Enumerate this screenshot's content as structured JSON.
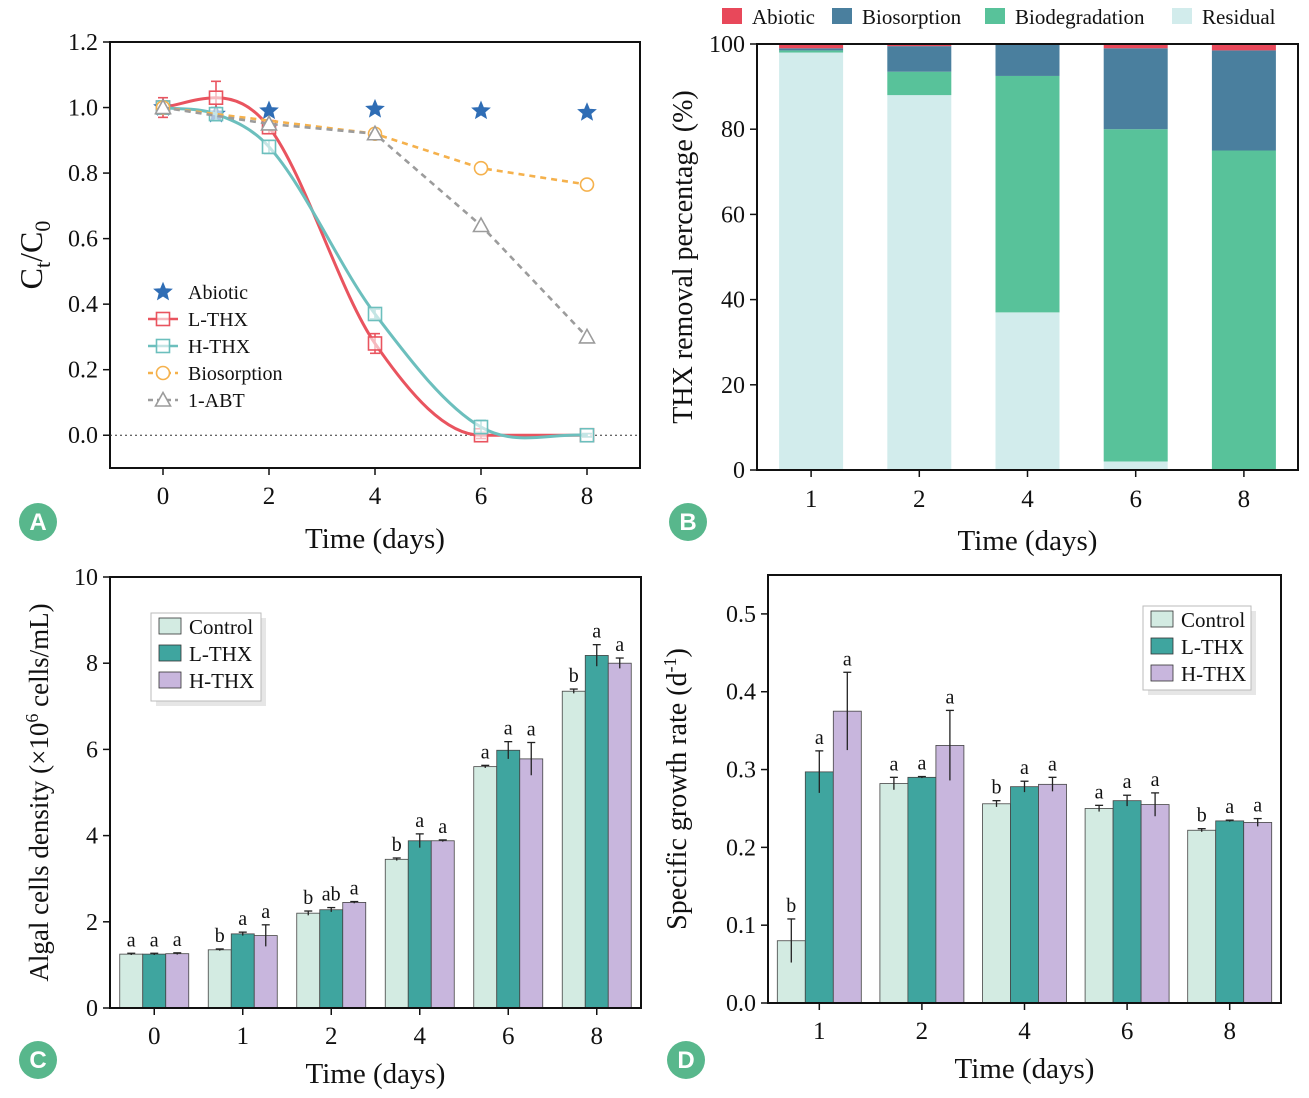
{
  "colors": {
    "abiotic": "#e8485a",
    "biosorption": "#4a7f9e",
    "biodegradation": "#58c29a",
    "residual": "#d2ecec",
    "l_thx": "#e9545f",
    "h_thx": "#6cbfbd",
    "bio_line": "#f5b14c",
    "abt": "#9c9c9c",
    "star": "#2f6db5",
    "control_bar": "#d3ebe2",
    "lthx_bar": "#3fa59f",
    "hthx_bar": "#c8b6dd",
    "panel_badge": "#58b78c"
  },
  "chart_data": [
    {
      "panel": "A",
      "type": "line",
      "xlabel": "Time (days)",
      "ylabel": "Ct/C0",
      "xlim": [
        -1,
        9
      ],
      "ylim": [
        -0.1,
        1.2
      ],
      "xticks": [
        "0",
        "2",
        "4",
        "6",
        "8"
      ],
      "yticks": [
        "0.0",
        "0.2",
        "0.4",
        "0.6",
        "0.8",
        "1.0",
        "1.2"
      ],
      "reference_line_y": 0,
      "legend_position": "bottom-left",
      "series": [
        {
          "name": "Abiotic",
          "marker": "star",
          "x": [
            0,
            1,
            2,
            4,
            6,
            8
          ],
          "y": [
            1.0,
            0.98,
            0.99,
            0.995,
            0.99,
            0.985
          ]
        },
        {
          "name": "L-THX",
          "marker": "square",
          "x": [
            0,
            1,
            2,
            4,
            6,
            8
          ],
          "y": [
            1.0,
            1.03,
            0.94,
            0.28,
            0.0,
            0.0
          ],
          "err": [
            0.03,
            0.05,
            0.02,
            0.03,
            0.01,
            0.005
          ]
        },
        {
          "name": "H-THX",
          "marker": "square",
          "x": [
            0,
            1,
            2,
            4,
            6,
            8
          ],
          "y": [
            1.0,
            0.98,
            0.88,
            0.37,
            0.025,
            0.0
          ],
          "err": [
            0.02,
            0.02,
            0.02,
            0.015,
            0.02,
            0.005
          ]
        },
        {
          "name": "Biosorption",
          "marker": "circle",
          "x": [
            0,
            4,
            6,
            8
          ],
          "y": [
            1.0,
            0.92,
            0.815,
            0.765
          ]
        },
        {
          "name": "1-ABT",
          "marker": "triangle",
          "x": [
            0,
            2,
            4,
            6,
            8
          ],
          "y": [
            1.0,
            0.95,
            0.92,
            0.64,
            0.3
          ]
        }
      ]
    },
    {
      "panel": "B",
      "type": "bar",
      "stacked": true,
      "xlabel": "Time (days)",
      "ylabel": "THX removal percentage (%)",
      "ylim": [
        0,
        100
      ],
      "yticks": [
        "0",
        "20",
        "40",
        "60",
        "80",
        "100"
      ],
      "categories": [
        "1",
        "2",
        "4",
        "6",
        "8"
      ],
      "legend_position": "top",
      "series": [
        {
          "name": "Residual",
          "values": [
            98,
            88,
            37,
            2,
            0
          ]
        },
        {
          "name": "Biodegradation",
          "values": [
            0.5,
            5.5,
            55.5,
            78,
            75
          ]
        },
        {
          "name": "Biosorption",
          "values": [
            0.5,
            6,
            7.5,
            19,
            23.5
          ]
        },
        {
          "name": "Abiotic",
          "values": [
            1,
            0.5,
            0,
            1,
            1.5
          ]
        }
      ]
    },
    {
      "panel": "C",
      "type": "bar",
      "xlabel": "Time (days)",
      "ylabel": "Algal cells density (×10⁶ cells/mL)",
      "ylim": [
        0,
        10
      ],
      "yticks": [
        "0",
        "2",
        "4",
        "6",
        "8",
        "10"
      ],
      "categories": [
        "0",
        "1",
        "2",
        "4",
        "6",
        "8"
      ],
      "legend_position": "top-left",
      "series": [
        {
          "name": "Control",
          "values": [
            1.25,
            1.35,
            2.2,
            3.45,
            5.6,
            7.35
          ],
          "err": [
            0.02,
            0.02,
            0.05,
            0.03,
            0.03,
            0.05
          ],
          "letters": [
            "a",
            "b",
            "b",
            "b",
            "a",
            "b"
          ]
        },
        {
          "name": "L-THX",
          "values": [
            1.25,
            1.72,
            2.28,
            3.88,
            5.98,
            8.18
          ],
          "err": [
            0.02,
            0.04,
            0.05,
            0.16,
            0.2,
            0.25
          ],
          "letters": [
            "a",
            "a",
            "ab",
            "a",
            "a",
            "a"
          ]
        },
        {
          "name": "H-THX",
          "values": [
            1.26,
            1.68,
            2.45,
            3.88,
            5.78,
            8.0
          ],
          "err": [
            0.02,
            0.25,
            0.02,
            0.02,
            0.38,
            0.12
          ],
          "letters": [
            "a",
            "a",
            "a",
            "a",
            "a",
            "a"
          ]
        }
      ]
    },
    {
      "panel": "D",
      "type": "bar",
      "xlabel": "Time (days)",
      "ylabel": "Specific growth rate (d⁻¹)",
      "ylim": [
        0,
        0.55
      ],
      "yticks": [
        "0.0",
        "0.1",
        "0.2",
        "0.3",
        "0.4",
        "0.5"
      ],
      "categories": [
        "1",
        "2",
        "4",
        "6",
        "8"
      ],
      "legend_position": "top-right",
      "series": [
        {
          "name": "Control",
          "values": [
            0.08,
            0.282,
            0.256,
            0.25,
            0.222
          ],
          "err": [
            0.028,
            0.008,
            0.004,
            0.004,
            0.002
          ],
          "letters": [
            "b",
            "a",
            "b",
            "a",
            "b"
          ]
        },
        {
          "name": "L-THX",
          "values": [
            0.297,
            0.29,
            0.278,
            0.26,
            0.234
          ],
          "err": [
            0.027,
            0.001,
            0.007,
            0.007,
            0.001
          ],
          "letters": [
            "a",
            "a",
            "a",
            "a",
            "a"
          ]
        },
        {
          "name": "H-THX",
          "values": [
            0.375,
            0.331,
            0.281,
            0.255,
            0.232
          ],
          "err": [
            0.05,
            0.045,
            0.009,
            0.015,
            0.005
          ],
          "letters": [
            "a",
            "a",
            "a",
            "a",
            "a"
          ]
        }
      ]
    }
  ],
  "panels": [
    "A",
    "B",
    "C",
    "D"
  ]
}
